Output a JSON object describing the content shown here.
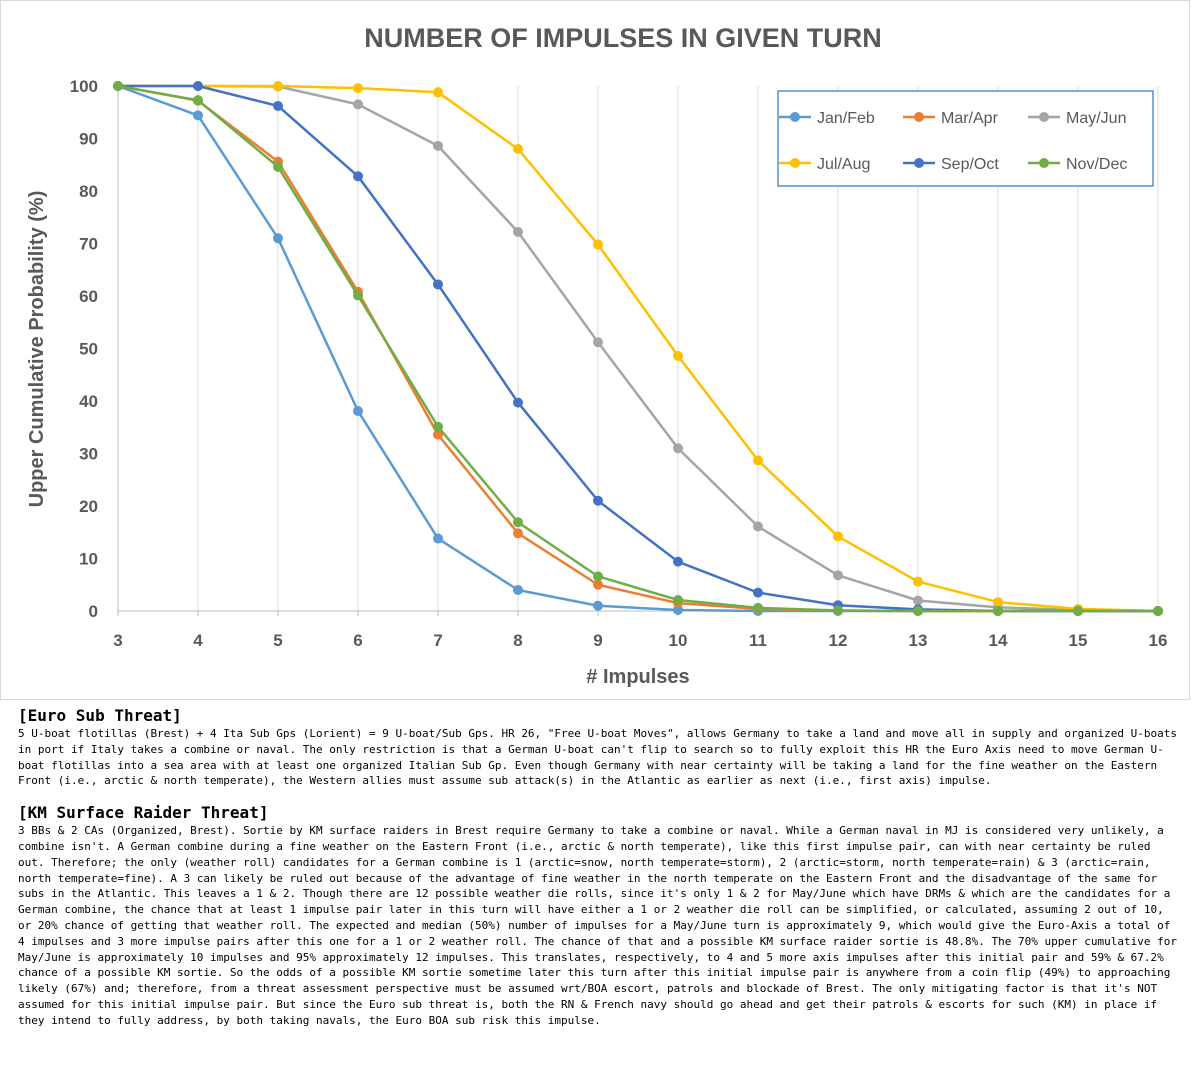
{
  "chart_data": {
    "type": "line",
    "title": "NUMBER OF IMPULSES IN GIVEN TURN",
    "xlabel": "# Impulses",
    "ylabel": "Upper Cumulative Probability (%)",
    "x": [
      3,
      4,
      5,
      6,
      7,
      8,
      9,
      10,
      11,
      12,
      13,
      14,
      15,
      16
    ],
    "xlim": [
      3,
      16
    ],
    "ylim": [
      0,
      100
    ],
    "yticks": [
      0,
      10,
      20,
      30,
      40,
      50,
      60,
      70,
      80,
      90,
      100
    ],
    "grid": "vertical",
    "legend_position": "top-right",
    "series": [
      {
        "name": "Jan/Feb",
        "color": "#5b9bd5",
        "values": [
          100,
          94.4,
          71,
          38.1,
          13.8,
          4,
          1,
          0.2,
          0,
          0,
          0,
          0,
          0,
          0
        ]
      },
      {
        "name": "Mar/Apr",
        "color": "#ed7d31",
        "values": [
          100,
          97.2,
          85.6,
          60.8,
          33.6,
          14.8,
          5,
          1.5,
          0.4,
          0.1,
          0,
          0,
          0,
          0
        ]
      },
      {
        "name": "May/Jun",
        "color": "#a5a5a5",
        "values": [
          100,
          100,
          99.9,
          96.5,
          88.6,
          72.2,
          51.2,
          31,
          16.1,
          6.8,
          2,
          0.7,
          0.2,
          0
        ]
      },
      {
        "name": "Jul/Aug",
        "color": "#ffc000",
        "values": [
          100,
          100,
          100,
          99.6,
          98.8,
          88,
          69.8,
          48.6,
          28.7,
          14.2,
          5.6,
          1.7,
          0.4,
          0
        ]
      },
      {
        "name": "Sep/Oct",
        "color": "#4472c4",
        "values": [
          100,
          100,
          96.2,
          82.8,
          62.2,
          39.7,
          21,
          9.4,
          3.5,
          1.1,
          0.3,
          0,
          0,
          0
        ]
      },
      {
        "name": "Nov/Dec",
        "color": "#70ad47",
        "values": [
          100,
          97.3,
          84.6,
          60.1,
          35.1,
          16.9,
          6.6,
          2.1,
          0.6,
          0.1,
          0,
          0,
          0,
          0
        ]
      }
    ]
  },
  "notes": [
    {
      "heading": "[Euro Sub Threat]",
      "body": "5 U-boat flotillas (Brest) + 4 Ita Sub Gps (Lorient) = 9  U-boat/Sub Gps.  HR 26, \"Free U-boat Moves\", allows Germany to take a land and move all in supply and organized U-boats in port if Italy takes a combine or naval.  The only restriction is that a German U-boat can't flip to search so to fully exploit this HR the Euro Axis need to move German U-boat flotillas into a sea area with at least one organized Italian Sub Gp.  Even though Germany with near certainty will be taking a land for the fine weather on the Eastern Front (i.e., arctic & north temperate), the Western allies must assume sub attack(s) in the Atlantic as earlier as next (i.e., first axis) impulse."
    },
    {
      "heading": "[KM Surface Raider Threat]",
      "body": "3 BBs & 2 CAs (Organized, Brest).  Sortie by KM surface raiders in Brest require Germany to take a combine or naval.  While a German naval in MJ is considered very unlikely, a combine isn't.  A German combine during a fine weather on the Eastern Front (i.e., arctic & north temperate), like this first impulse pair, can with near certainty be ruled out.  Therefore; the only (weather roll) candidates for a German combine is 1 (arctic=snow, north temperate=storm), 2 (arctic=storm, north temperate=rain) & 3 (arctic=rain, north temperate=fine).  A 3 can likely be ruled out because of the advantage of fine weather in the north temperate on the Eastern Front and the disadvantage of the same for subs in the Atlantic.  This leaves a 1 & 2.  Though there are 12 possible weather die rolls, since it's only 1 & 2 for May/June which have DRMs & which are the candidates for a German combine, the chance that at least 1  impulse pair later in this turn will have either a 1 or 2 weather die roll can be simplified, or calculated, assuming 2 out of 10, or 20% chance of getting that weather roll.  The expected and median (50%) number of impulses for a May/June turn is approximately 9, which would give the Euro-Axis a total of 4 impulses and 3 more impulse pairs after this one for a 1 or 2 weather roll.  The chance of that and a possible KM surface raider sortie is 48.8%.  The 70% upper cumulative for May/June is approximately 10 impulses and 95% approximately 12 impulses.  This translates, respectively, to 4 and 5 more axis impulses after this initial pair and 59% & 67.2% chance of a possible KM sortie.  So the odds of a possible KM sortie sometime later this turn after this initial impulse pair is anywhere from a coin flip (49%) to approaching likely (67%) and; therefore, from a threat assessment perspective must be assumed wrt/BOA escort, patrols and blockade of Brest.  The only mitigating factor is that it's NOT assumed for this initial impulse pair.  But since the Euro sub threat is, both the RN & French navy should go ahead and get their patrols & escorts for such (KM) in place if they intend to fully address, by both taking navals, the Euro BOA sub risk this impulse."
    }
  ]
}
